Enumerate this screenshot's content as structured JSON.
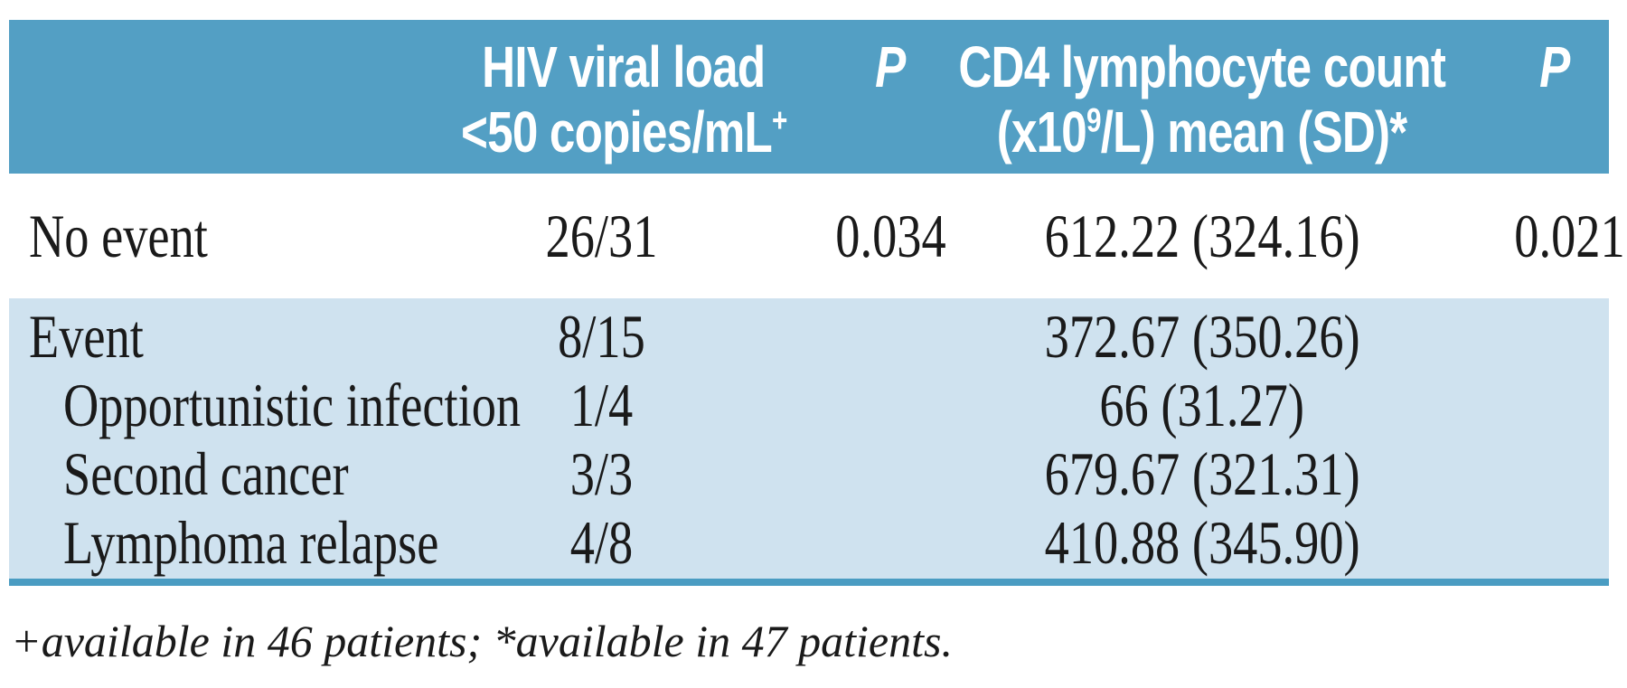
{
  "colors": {
    "header-bg": "#539fc4",
    "band-bg": "#cfe2ef",
    "rule-color": "#4a9cc2",
    "header-text": "#ffffff",
    "body-text": "#1a1a1a"
  },
  "header": {
    "viral": {
      "line1": "HIV viral load",
      "line2": "<50 copies/mL",
      "sup": "+"
    },
    "p1": "P",
    "cd4": {
      "line1": "CD4 lymphocyte count",
      "line2_pre": "(x10",
      "sup": "9",
      "line2_post": "/L) mean (SD)",
      "asterisk": "*"
    },
    "p2": "P"
  },
  "rows": [
    {
      "label": "No event",
      "viral": "26/31",
      "p1": "0.034",
      "cd4": "612.22 (324.16)",
      "p2": "0.021"
    },
    {
      "label": "Event",
      "viral": "8/15",
      "p1": "",
      "cd4": "372.67 (350.26)",
      "p2": ""
    },
    {
      "label": "Opportunistic infection",
      "viral": "1/4",
      "p1": "",
      "cd4": "66 (31.27)",
      "p2": ""
    },
    {
      "label": "Second cancer",
      "viral": "3/3",
      "p1": "",
      "cd4": "679.67 (321.31)",
      "p2": ""
    },
    {
      "label": "Lymphoma relapse",
      "viral": "4/8",
      "p1": "",
      "cd4": "410.88 (345.90)",
      "p2": ""
    }
  ],
  "footnote": "+available in 46 patients; *available in 47 patients."
}
